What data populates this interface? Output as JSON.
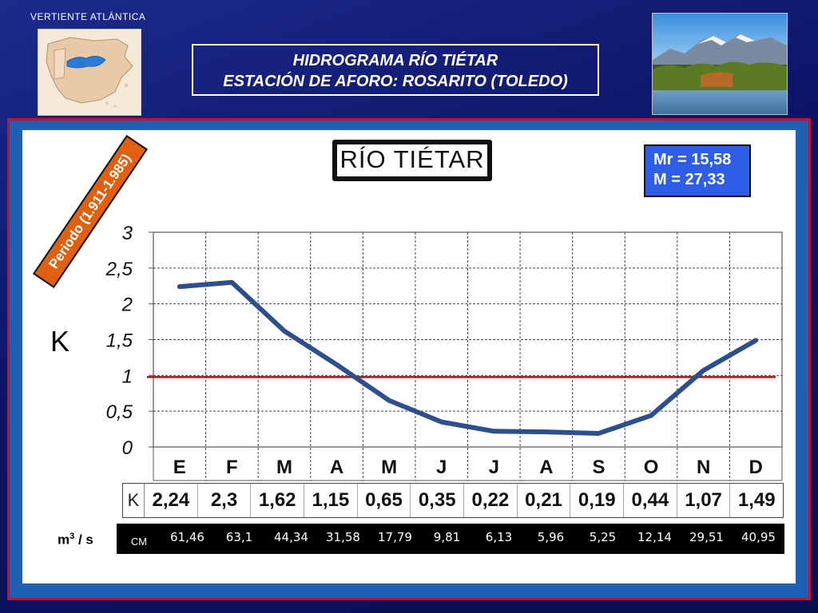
{
  "header": {
    "region_label": "VERTIENTE  ATLÁNTICA",
    "title_line1": "HIDROGRAMA  RÍO  TIÉTAR",
    "title_line2": "ESTACIÓN DE AFORO: ROSARITO (TOLEDO)"
  },
  "panel": {
    "chart_title": "RÍO TIÉTAR",
    "stats_line1": "Mr = 15,58",
    "stats_line2": "M = 27,33",
    "period_badge": "Periodo (1.911-1.985)",
    "k_table_head": "K",
    "units_base": "m",
    "units_sup": "3",
    "units_suffix": " / s",
    "cm_head": "CM"
  },
  "chart_data": {
    "type": "line",
    "categories": [
      "E",
      "F",
      "M",
      "A",
      "M",
      "J",
      "J",
      "A",
      "S",
      "O",
      "N",
      "D"
    ],
    "series": [
      {
        "values": [
          2.24,
          2.3,
          1.62,
          1.15,
          0.65,
          0.35,
          0.22,
          0.21,
          0.19,
          0.44,
          1.07,
          1.49
        ]
      }
    ],
    "reference_line": 1,
    "ylabel": "K",
    "ylim": [
      0,
      3
    ],
    "y_ticks": [
      "0",
      "0,5",
      "1",
      "1,5",
      "2",
      "2,5",
      "3"
    ],
    "y_tick_values": [
      0,
      0.5,
      1,
      1.5,
      2,
      2.5,
      3
    ],
    "grid": true,
    "k_labels": [
      "2,24",
      "2,3",
      "1,62",
      "1,15",
      "0,65",
      "0,35",
      "0,22",
      "0,21",
      "0,19",
      "0,44",
      "1,07",
      "1,49"
    ],
    "flow_m3s": [
      "61,46",
      "63,1",
      "44,34",
      "31,58",
      "17,79",
      "9,81",
      "6,13",
      "5,96",
      "5,25",
      "12,14",
      "29,51",
      "40,95"
    ]
  },
  "colors": {
    "line": "#2d4f8e",
    "reference": "#b01010",
    "frame": "#c8102e",
    "panel_border": "#1f5fb4",
    "badge": "#e06010",
    "stats_box": "#2e5ee8"
  },
  "icons": {
    "map": "iberian-peninsula-map-icon",
    "photo": "river-landscape-photo"
  }
}
